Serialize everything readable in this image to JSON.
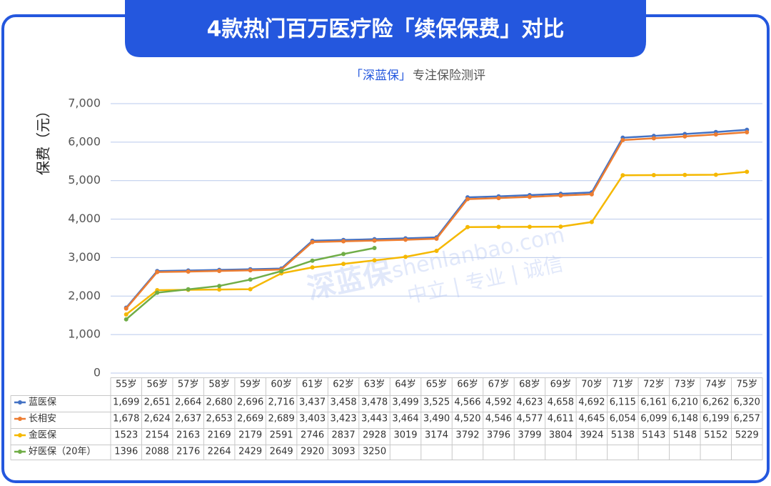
{
  "chart_data": {
    "type": "line",
    "title": "4款热门百万医疗险「续保保费」对比",
    "subtitle_brand": "「深蓝保」",
    "subtitle": "专注保险测评",
    "y_label": "保费（元）",
    "watermark": {
      "url": "shenlanbao.com",
      "slogan": "中立 | 专业 | 诚信",
      "logo": "深蓝保"
    },
    "categories": [
      "55岁",
      "56岁",
      "57岁",
      "58岁",
      "59岁",
      "60岁",
      "61岁",
      "62岁",
      "63岁",
      "64岁",
      "65岁",
      "66岁",
      "67岁",
      "68岁",
      "69岁",
      "70岁",
      "71岁",
      "72岁",
      "73岁",
      "74岁",
      "75岁"
    ],
    "ylim": [
      0,
      7000
    ],
    "yticks": [
      0,
      {
        "value": 1000,
        "label": "1,000"
      },
      {
        "value": 2000,
        "label": "2,000"
      },
      {
        "value": 3000,
        "label": "3,000"
      },
      {
        "value": 4000,
        "label": "4,000"
      },
      {
        "value": 5000,
        "label": "5,000"
      },
      {
        "value": 6000,
        "label": "6,000"
      },
      {
        "value": 7000,
        "label": "7,000"
      }
    ],
    "grid": true,
    "series": [
      {
        "name": "蓝医保",
        "color": "#4472c4",
        "values": [
          1699,
          2651,
          2664,
          2680,
          2696,
          2716,
          3437,
          3458,
          3478,
          3499,
          3525,
          4566,
          4592,
          4623,
          4658,
          4692,
          6115,
          6161,
          6210,
          6262,
          6320
        ],
        "value_labels": [
          "1,699",
          "2,651",
          "2,664",
          "2,680",
          "2,696",
          "2,716",
          "3,437",
          "3,458",
          "3,478",
          "3,499",
          "3,525",
          "4,566",
          "4,592",
          "4,623",
          "4,658",
          "4,692",
          "6,115",
          "6,161",
          "6,210",
          "6,262",
          "6,320"
        ]
      },
      {
        "name": "长相安",
        "color": "#ed7d31",
        "values": [
          1678,
          2624,
          2637,
          2653,
          2669,
          2689,
          3403,
          3423,
          3443,
          3464,
          3490,
          4520,
          4546,
          4577,
          4611,
          4645,
          6054,
          6099,
          6148,
          6199,
          6257
        ],
        "value_labels": [
          "1,678",
          "2,624",
          "2,637",
          "2,653",
          "2,669",
          "2,689",
          "3,403",
          "3,423",
          "3,443",
          "3,464",
          "3,490",
          "4,520",
          "4,546",
          "4,577",
          "4,611",
          "4,645",
          "6,054",
          "6,099",
          "6,148",
          "6,199",
          "6,257"
        ]
      },
      {
        "name": "金医保",
        "color": "#f5b800",
        "values": [
          1523,
          2154,
          2163,
          2169,
          2179,
          2591,
          2746,
          2837,
          2928,
          3019,
          3174,
          3792,
          3796,
          3799,
          3804,
          3924,
          5138,
          5143,
          5148,
          5152,
          5229
        ]
      },
      {
        "name": "好医保（20年）",
        "color": "#70ad47",
        "values": [
          1396,
          2088,
          2176,
          2264,
          2429,
          2649,
          2920,
          3093,
          3250,
          null,
          null,
          null,
          null,
          null,
          null,
          null,
          null,
          null,
          null,
          null,
          null
        ]
      }
    ]
  }
}
